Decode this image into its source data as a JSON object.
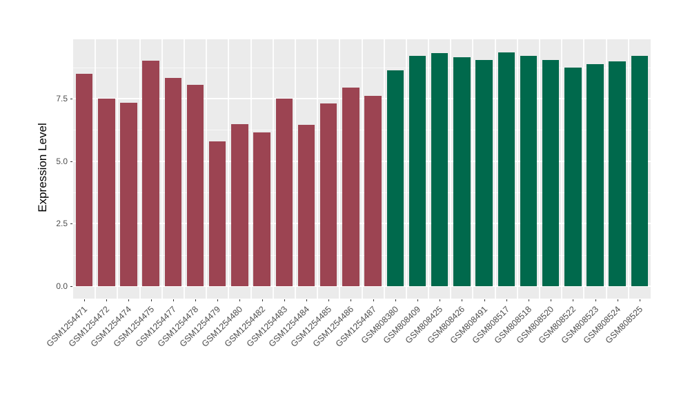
{
  "chart_data": {
    "type": "bar",
    "title": "",
    "xlabel": "",
    "ylabel": "Expression Level",
    "legend": "none",
    "panel_background": "#EBEBEB",
    "grid_color": "#FFFFFF",
    "grid": "on",
    "axis_text_color": "#4D4D4D",
    "y_ticks": [
      "0.0",
      "2.5",
      "5.0",
      "7.5"
    ],
    "y_tick_values": [
      0,
      2.5,
      5,
      7.5
    ],
    "y_minor_values": [
      1.25,
      3.75,
      6.25,
      8.75
    ],
    "ymin_panel": -0.49,
    "ymax_panel": 9.87,
    "ylim": [
      0,
      9.9
    ],
    "categories": [
      "GSM1254471",
      "GSM1254472",
      "GSM1254474",
      "GSM1254475",
      "GSM1254477",
      "GSM1254478",
      "GSM1254479",
      "GSM1254480",
      "GSM1254482",
      "GSM1254483",
      "GSM1254484",
      "GSM1254485",
      "GSM1254486",
      "GSM1254487",
      "GSM808380",
      "GSM808409",
      "GSM808425",
      "GSM808426",
      "GSM808491",
      "GSM808517",
      "GSM808518",
      "GSM808520",
      "GSM808522",
      "GSM808523",
      "GSM808524",
      "GSM808525"
    ],
    "values": [
      8.48,
      7.5,
      7.33,
      9.02,
      8.33,
      8.04,
      5.79,
      6.47,
      6.16,
      7.5,
      6.46,
      7.32,
      7.94,
      7.61,
      8.63,
      9.22,
      9.32,
      9.16,
      9.04,
      9.34,
      9.21,
      9.04,
      8.75,
      8.88,
      8.98,
      9.2
    ],
    "group_split_index": 14,
    "group_colors": [
      "#9C4452",
      "#00694C"
    ]
  }
}
